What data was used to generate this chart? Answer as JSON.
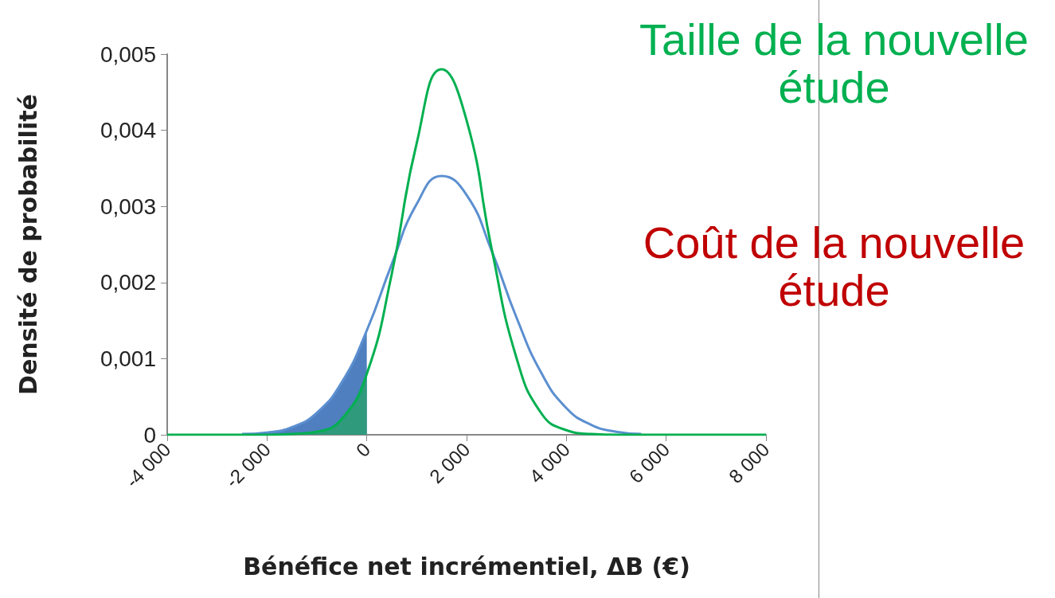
{
  "chart_data": {
    "type": "line",
    "xlabel": "Bénéfice net incrémentiel, ΔB (€)",
    "ylabel": "Densité de probabilité",
    "x": [
      -4000,
      -3500,
      -3000,
      -2500,
      -2000,
      -1500,
      -1000,
      -500,
      0,
      500,
      1000,
      1500,
      2000,
      2500,
      3000,
      3500,
      4000,
      4500,
      5000,
      5500,
      6000,
      6500,
      7000,
      7500,
      8000
    ],
    "series": [
      {
        "type": "area",
        "color": "#4f7fbf",
        "x": [
          -3000,
          -2500,
          -2000,
          -1500,
          -1000,
          -500,
          0
        ],
        "values": [
          0,
          1e-05,
          3e-05,
          0.0001,
          0.00029,
          0.00069,
          0.00137
        ]
      },
      {
        "type": "area",
        "color": "#2f9a7c",
        "x": [
          -2000,
          -1500,
          -1000,
          -500,
          0
        ],
        "values": [
          0,
          1e-05,
          4e-05,
          0.00021,
          0.0008
        ]
      },
      {
        "color": "#5b8fd0",
        "values": [
          null,
          null,
          null,
          1e-05,
          3e-05,
          0.0001,
          0.00029,
          0.00069,
          0.00137,
          0.00224,
          0.00303,
          0.0034,
          0.00315,
          0.00242,
          0.00154,
          0.00081,
          0.00035,
          0.00013,
          4e-05,
          1e-05,
          null,
          null,
          null,
          null,
          null
        ]
      },
      {
        "color": "#00b050",
        "values": [
          0,
          0,
          0,
          0,
          0,
          1e-05,
          4e-05,
          0.00021,
          0.0008,
          0.00211,
          0.00383,
          0.0048,
          0.00413,
          0.00245,
          0.00101,
          0.00028,
          6e-05,
          1e-05,
          0,
          0,
          0,
          0,
          0,
          0,
          0
        ]
      }
    ],
    "xlim": [
      -4000,
      8000
    ],
    "xticks": [
      {
        "value": -4000,
        "label": "-4 000"
      },
      {
        "value": -2000,
        "label": "-2 000"
      },
      0,
      {
        "value": 2000,
        "label": "2 000"
      },
      {
        "value": 4000,
        "label": "4 000"
      },
      {
        "value": 6000,
        "label": "6 000"
      },
      {
        "value": 8000,
        "label": "8 000"
      }
    ],
    "ylim": [
      0,
      0.005
    ],
    "yticks": [
      0,
      {
        "value": 0.001,
        "label": "0,001"
      },
      {
        "value": 0.002,
        "label": "0,002"
      },
      {
        "value": 0.003,
        "label": "0,003"
      },
      {
        "value": 0.004,
        "label": "0,004"
      },
      {
        "value": 0.005,
        "label": "0,005"
      }
    ],
    "grid": false,
    "marker": "none",
    "line_style": "solid",
    "annotations": [
      "Taille de la nouvelle étude",
      "Coût de la nouvelle étude"
    ]
  }
}
